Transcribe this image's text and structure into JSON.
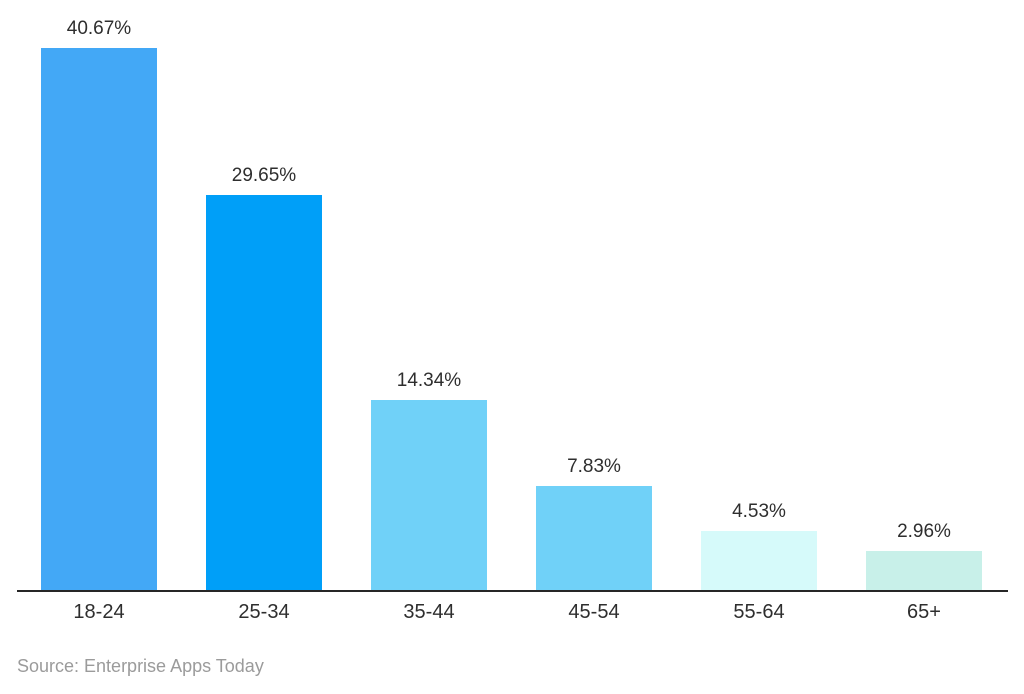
{
  "chart_data": {
    "type": "bar",
    "title": "",
    "categories": [
      "18-24",
      "25-34",
      "35-44",
      "45-54",
      "55-64",
      "65+"
    ],
    "values": [
      40.67,
      29.65,
      14.34,
      7.83,
      4.53,
      2.96
    ],
    "value_labels": [
      "40.67%",
      "29.65%",
      "14.34%",
      "7.83%",
      "4.53%",
      "2.96%"
    ],
    "bar_colors": [
      "#43a8f6",
      "#009ff8",
      "#70d1f8",
      "#70d1f8",
      "#d6fafa",
      "#c8f0e9"
    ],
    "xlabel": "",
    "ylabel": "",
    "ylim": [
      0,
      44
    ],
    "grid": false,
    "legend": null,
    "axis_line_color": "#262626",
    "label_text_color": "#2e2e2e",
    "source_text_color": "#9b9b9b",
    "background_color": "#ffffff",
    "source": "Source: Enterprise Apps Today"
  }
}
